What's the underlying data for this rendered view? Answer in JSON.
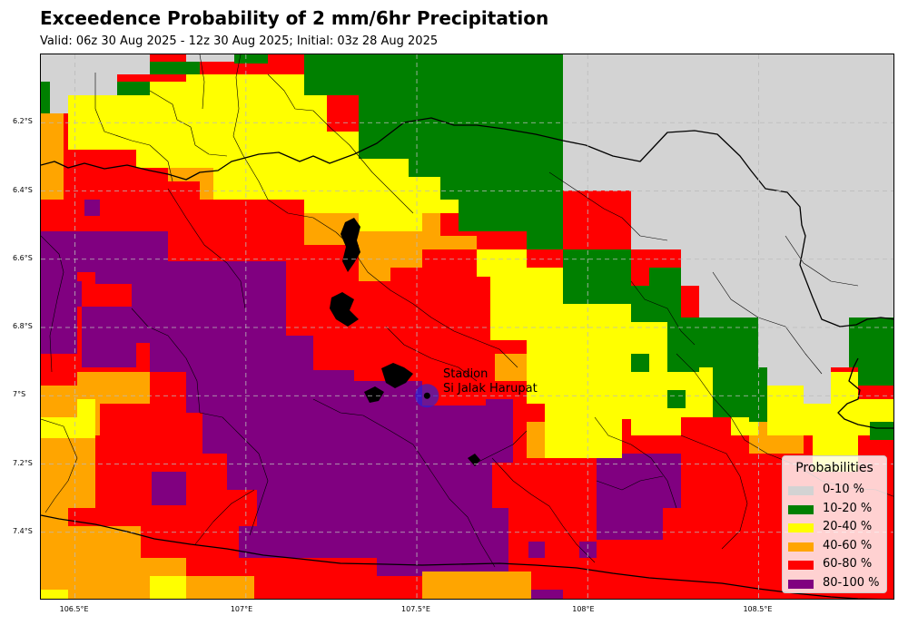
{
  "title": "Exceedence Probability of 2 mm/6hr Precipitation",
  "subtitle": "Valid: 06z 30 Aug 2025 - 12z 30 Aug 2025; Initial: 03z 28 Aug 2025",
  "map": {
    "lon_range": [
      106.4,
      108.9
    ],
    "lat_range": [
      -7.6,
      -6.0
    ],
    "lon_ticks": [
      {
        "value": 106.5,
        "label": "106.5°E"
      },
      {
        "value": 107.0,
        "label": "107°E"
      },
      {
        "value": 107.5,
        "label": "107.5°E"
      },
      {
        "value": 108.0,
        "label": "108°E"
      },
      {
        "value": 108.5,
        "label": "108.5°E"
      }
    ],
    "lat_ticks": [
      {
        "value": -6.2,
        "label": "6.2°S"
      },
      {
        "value": -6.4,
        "label": "6.4°S"
      },
      {
        "value": -6.6,
        "label": "6.6°S"
      },
      {
        "value": -6.8,
        "label": "6.8°S"
      },
      {
        "value": -7.0,
        "label": "7°S"
      },
      {
        "value": -7.2,
        "label": "7.2°S"
      },
      {
        "value": -7.4,
        "label": "7.4°S"
      }
    ],
    "grid_lines": true,
    "station": {
      "name": "Stadion Si Jalak Harupat",
      "line1": "Stadion",
      "line2": "Si Jalak Harupat",
      "lon": 107.53,
      "lat": -7.0,
      "marker_color": "#2222dd"
    }
  },
  "legend": {
    "title": "Probabilities",
    "placement": "lower-right",
    "items": [
      {
        "label": "0-10 %",
        "color": "#d3d3d3"
      },
      {
        "label": "10-20 %",
        "color": "#008000"
      },
      {
        "label": "20-40 %",
        "color": "#ffff00"
      },
      {
        "label": "40-60 %",
        "color": "#ffa500"
      },
      {
        "label": "60-80 %",
        "color": "#ff0000"
      },
      {
        "label": "80-100 %",
        "color": "#800080"
      }
    ]
  }
}
